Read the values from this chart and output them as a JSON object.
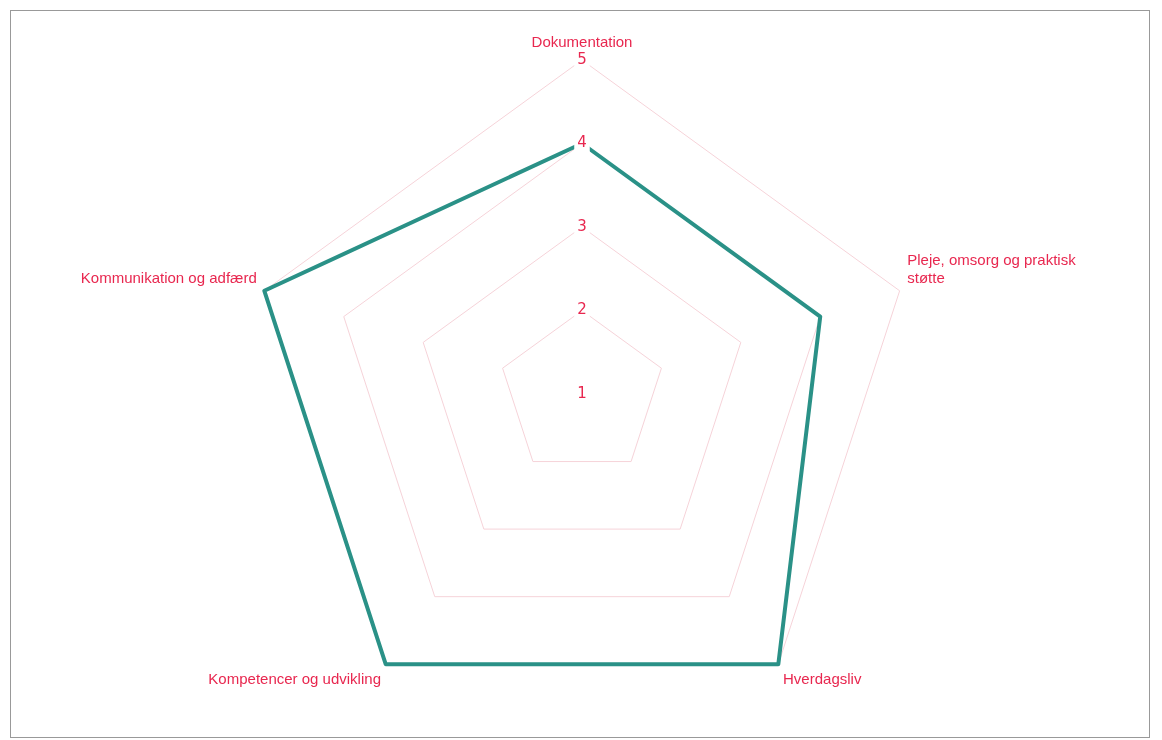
{
  "chart_data": {
    "type": "radar",
    "categories": [
      "Dokumentation",
      "Pleje, omsorg og praktisk støtte",
      "Hverdagsliv",
      "Kompetencer og udvikling",
      "Kommunikation og adfærd"
    ],
    "series": [
      {
        "color": "#2a9187",
        "values": [
          4,
          4,
          5,
          5,
          5
        ]
      }
    ],
    "ylim": [
      1,
      5
    ],
    "yticks": [
      1,
      2,
      3,
      4,
      5
    ],
    "grid": true,
    "legend": false,
    "marker": "none",
    "line_style": "solid"
  }
}
